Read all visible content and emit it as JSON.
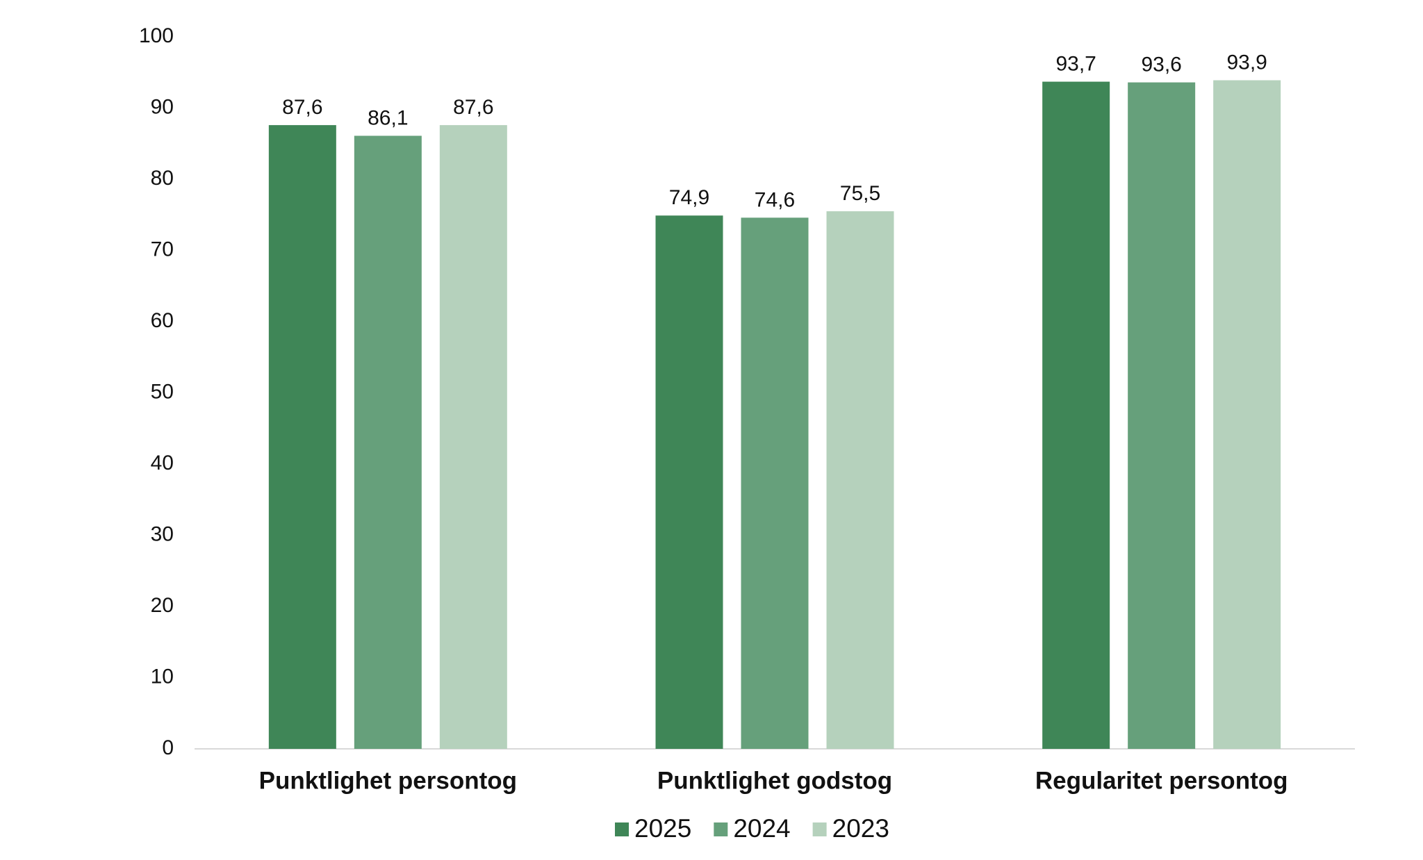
{
  "chart_data": {
    "type": "bar",
    "categories": [
      "Punktlighet persontog",
      "Punktlighet godstog",
      "Regularitet persontog"
    ],
    "series": [
      {
        "name": "2025",
        "color": "#3f8657",
        "values": [
          87.6,
          74.9,
          93.7
        ],
        "value_labels": [
          "87,6",
          "74,9",
          "93,7"
        ]
      },
      {
        "name": "2024",
        "color": "#66a07b",
        "values": [
          86.1,
          74.6,
          93.6
        ],
        "value_labels": [
          "86,1",
          "74,6",
          "93,6"
        ]
      },
      {
        "name": "2023",
        "color": "#b5d1bc",
        "values": [
          87.6,
          75.5,
          93.9
        ],
        "value_labels": [
          "87,6",
          "75,5",
          "93,9"
        ]
      }
    ],
    "ylim": [
      0,
      100
    ],
    "yticks": [
      0,
      10,
      20,
      30,
      40,
      50,
      60,
      70,
      80,
      90,
      100
    ],
    "grid": false,
    "legend": "bottom"
  }
}
